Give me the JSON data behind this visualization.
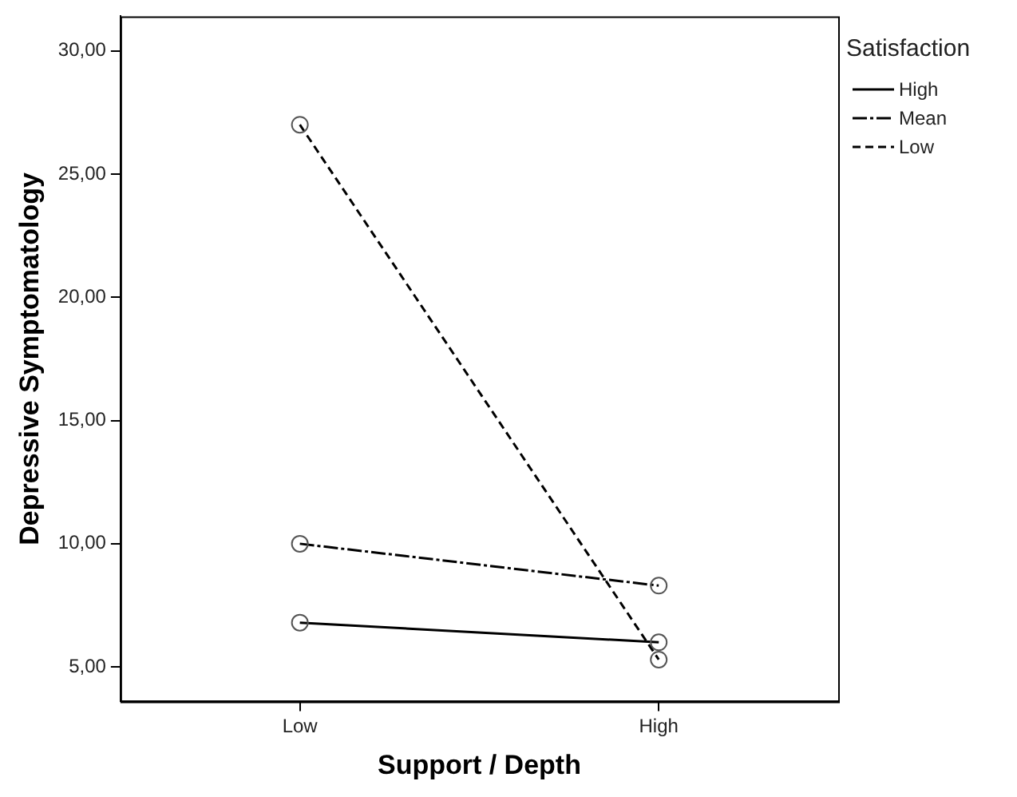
{
  "chart_data": {
    "type": "line",
    "xlabel": "Support / Depth",
    "ylabel": "Depressive Symptomatology",
    "legend_title": "Satisfaction",
    "categories": [
      "Low",
      "High"
    ],
    "series": [
      {
        "name": "High",
        "color": "#000000",
        "values": [
          6.8,
          6.0
        ],
        "line_style": "solid"
      },
      {
        "name": "Mean",
        "color": "#000000",
        "values": [
          10.0,
          8.3
        ],
        "line_style": "dotted"
      },
      {
        "name": "Low",
        "color": "#000000",
        "values": [
          27.0,
          5.3
        ],
        "line_style": "dashed"
      }
    ],
    "ylim": [
      3.6,
      31.4
    ],
    "yticks": [
      {
        "value": 5,
        "label": "5,00"
      },
      {
        "value": 10,
        "label": "10,00"
      },
      {
        "value": 15,
        "label": "15,00"
      },
      {
        "value": 20,
        "label": "20,00"
      },
      {
        "value": 25,
        "label": "25,00"
      },
      {
        "value": 30,
        "label": "30,00"
      }
    ],
    "grid": false,
    "legend": "top right",
    "marker": "circle"
  }
}
